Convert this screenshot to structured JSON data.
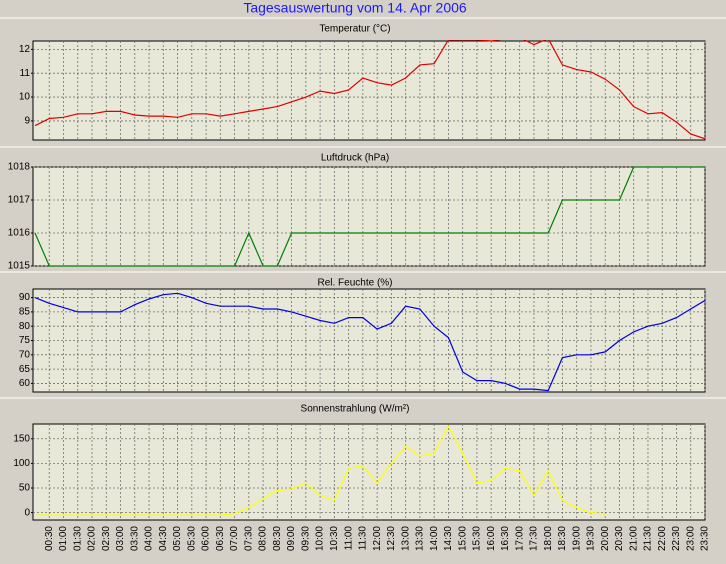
{
  "title": "Tagesauswertung vom 14. Apr 2006",
  "categories": [
    null,
    "00:30",
    "01:00",
    "01:30",
    "02:00",
    "02:30",
    "03:00",
    "03:30",
    "04:00",
    "04:30",
    "05:00",
    "05:30",
    "06:00",
    "06:30",
    "07:00",
    "07:30",
    "08:00",
    "08:30",
    "09:00",
    "09:30",
    "10:00",
    "10:30",
    "11:00",
    "11:30",
    "12:00",
    "12:30",
    "13:00",
    "13:30",
    "14:00",
    "14:30",
    "15:00",
    "15:30",
    "16:00",
    "16:30",
    "17:00",
    "17:30",
    "18:00",
    "18:30",
    "19:00",
    "19:30",
    "20:00",
    "20:30",
    "21:00",
    "21:30",
    "22:00",
    "22:30",
    "23:00",
    "23:30"
  ],
  "chart_data": [
    {
      "type": "line",
      "title": "Temperatur (°C)",
      "color": "#e00000",
      "ylim": [
        8.2,
        12.35
      ],
      "yticks": [
        9,
        10,
        11,
        12
      ],
      "grid": true,
      "values": [
        8.8,
        9.1,
        9.15,
        9.3,
        9.3,
        9.4,
        9.4,
        9.25,
        9.2,
        9.2,
        9.15,
        9.3,
        9.3,
        9.2,
        9.3,
        9.4,
        9.5,
        9.6,
        9.8,
        10.0,
        10.25,
        10.15,
        10.3,
        10.8,
        10.6,
        10.5,
        10.8,
        11.35,
        11.4,
        12.4,
        12.4,
        12.4,
        12.35,
        12.45,
        12.5,
        12.2,
        12.45,
        11.35,
        11.15,
        11.05,
        10.75,
        10.3,
        9.6,
        9.3,
        9.35,
        8.95,
        8.45,
        8.25
      ]
    },
    {
      "type": "line",
      "title": "Luftdruck (hPa)",
      "color": "#008000",
      "ylim": [
        1015,
        1018
      ],
      "yticks": [
        1015,
        1016,
        1017,
        1018
      ],
      "grid": true,
      "values": [
        1016,
        1015,
        1015,
        1015,
        1015,
        1015,
        1015,
        1015,
        1015,
        1015,
        1015,
        1015,
        1015,
        1015,
        1015,
        1016,
        1015,
        1015,
        1016,
        1016,
        1016,
        1016,
        1016,
        1016,
        1016,
        1016,
        1016,
        1016,
        1016,
        1016,
        1016,
        1016,
        1016,
        1016,
        1016,
        1016,
        1016,
        1017,
        1017,
        1017,
        1017,
        1017,
        1018,
        1018,
        1018,
        1018,
        1018,
        1018
      ]
    },
    {
      "type": "line",
      "title": "Rel. Feuchte (%)",
      "color": "#0000e0",
      "ylim": [
        57,
        93
      ],
      "yticks": [
        60,
        65,
        70,
        75,
        80,
        85,
        90
      ],
      "grid": true,
      "values": [
        90,
        88,
        86.5,
        85,
        85,
        85,
        85,
        87.5,
        89.5,
        91,
        91.5,
        90,
        88,
        87,
        87,
        87,
        86,
        86,
        85,
        83.5,
        82,
        81,
        83,
        83,
        79,
        81,
        87,
        86,
        80,
        76,
        64,
        61,
        61,
        60,
        58,
        58,
        57.5,
        69,
        70,
        70,
        71,
        75,
        78,
        80,
        81,
        83,
        86,
        89
      ]
    },
    {
      "type": "line",
      "title": "Sonnenstrahlung (W/m²)",
      "color": "#ffff00",
      "ylim": [
        -15,
        180
      ],
      "yticks": [
        0,
        50,
        100,
        150
      ],
      "grid": true,
      "values": [
        -5,
        -5,
        -5,
        -5,
        -5,
        -5,
        -5,
        -5,
        -5,
        -5,
        -5,
        -5,
        -5,
        -5,
        -2,
        10,
        28,
        45,
        48,
        60,
        35,
        25,
        90,
        95,
        60,
        100,
        135,
        115,
        120,
        175,
        120,
        60,
        65,
        90,
        85,
        35,
        85,
        25,
        10,
        0,
        -3,
        null,
        null,
        null,
        null,
        null,
        null,
        null
      ]
    }
  ]
}
